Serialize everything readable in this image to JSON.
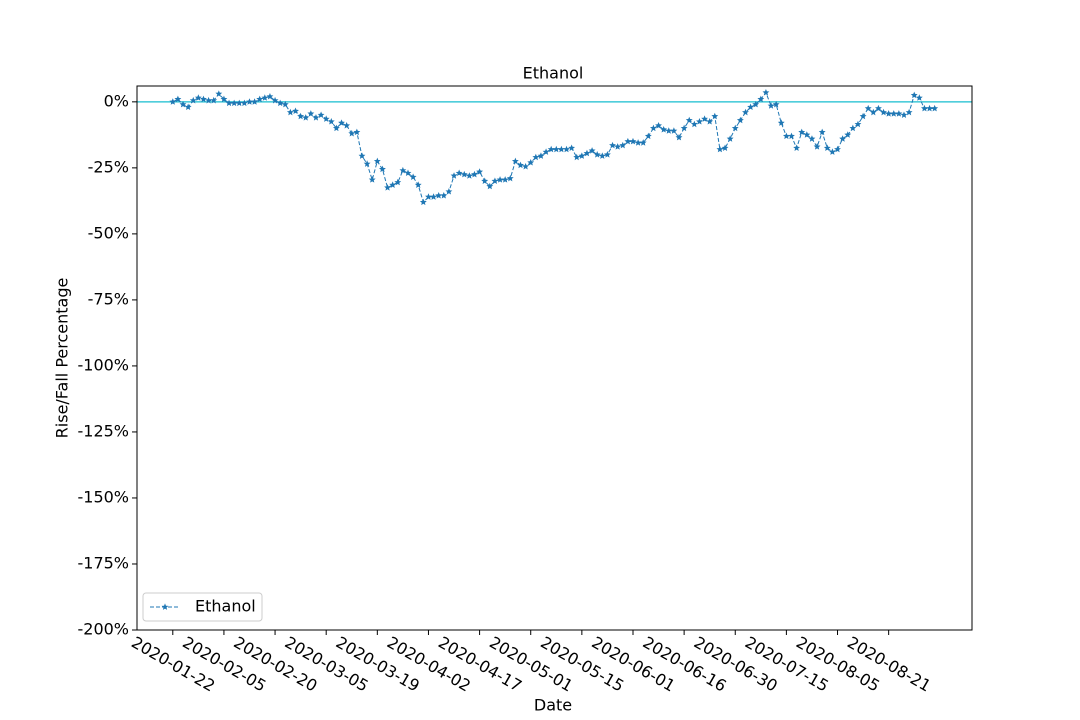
{
  "chart_data": {
    "type": "line",
    "title": "Ethanol",
    "x_label": "Date",
    "y_label": "Rise/Fall Percentage",
    "categories": [
      "2020-01-22",
      null,
      null,
      null,
      null,
      null,
      null,
      null,
      null,
      null,
      "2020-02-05",
      null,
      null,
      null,
      null,
      null,
      null,
      null,
      null,
      null,
      "2020-02-20",
      null,
      null,
      null,
      null,
      null,
      null,
      null,
      null,
      null,
      "2020-03-05",
      null,
      null,
      null,
      null,
      null,
      null,
      null,
      null,
      null,
      "2020-03-19",
      null,
      null,
      null,
      null,
      null,
      null,
      null,
      null,
      null,
      "2020-04-02",
      null,
      null,
      null,
      null,
      null,
      null,
      null,
      null,
      null,
      "2020-04-17",
      null,
      null,
      null,
      null,
      null,
      null,
      null,
      null,
      null,
      "2020-05-01",
      null,
      null,
      null,
      null,
      null,
      null,
      null,
      null,
      null,
      "2020-05-15",
      null,
      null,
      null,
      null,
      null,
      null,
      null,
      null,
      null,
      "2020-06-01",
      null,
      null,
      null,
      null,
      null,
      null,
      null,
      null,
      null,
      "2020-06-16",
      null,
      null,
      null,
      null,
      null,
      null,
      null,
      null,
      null,
      "2020-06-30",
      null,
      null,
      null,
      null,
      null,
      null,
      null,
      null,
      null,
      "2020-07-15",
      null,
      null,
      null,
      null,
      null,
      null,
      null,
      null,
      null,
      "2020-08-05",
      null,
      null,
      null,
      null,
      null,
      null,
      null,
      null,
      null,
      "2020-08-21",
      null,
      null,
      null,
      null,
      null,
      null,
      null,
      null,
      null
    ],
    "series": [
      {
        "name": "Ethanol",
        "color": "#1f77b4",
        "line_style": "dashed",
        "marker": "star",
        "values": [
          0,
          1,
          -1,
          -2,
          0.5,
          1.5,
          1,
          0.5,
          0.5,
          3,
          1,
          -0.5,
          -0.5,
          -0.5,
          -0.5,
          0,
          0,
          1,
          1.5,
          2,
          0.5,
          -0.5,
          -1,
          -4,
          -3.5,
          -5.5,
          -6,
          -4.5,
          -6,
          -5,
          -6.5,
          -7.5,
          -10,
          -8,
          -9,
          -12,
          -11.5,
          -20.5,
          -23.5,
          -29.5,
          -22.5,
          -25.5,
          -32.5,
          -31.5,
          -30.5,
          -26,
          -27,
          -28.5,
          -31.5,
          -38,
          -36,
          -36,
          -35.5,
          -35.5,
          -34,
          -28,
          -27,
          -27.5,
          -28,
          -27.5,
          -26.5,
          -30,
          -32,
          -30,
          -29.5,
          -29.5,
          -29,
          -22.5,
          -24,
          -24.5,
          -23,
          -21,
          -20.5,
          -19,
          -18,
          -18,
          -18,
          -18,
          -17.5,
          -21,
          -20.5,
          -19.5,
          -18.5,
          -20,
          -20.5,
          -20,
          -16.5,
          -17,
          -16.5,
          -15,
          -15,
          -15.5,
          -15.5,
          -13,
          -10,
          -9,
          -10.5,
          -11,
          -11,
          -13.5,
          -10,
          -7,
          -8.5,
          -7.5,
          -6.5,
          -7.5,
          -5.5,
          -18,
          -17.5,
          -14,
          -10,
          -7,
          -4,
          -2,
          -1,
          1,
          3.5,
          -1.5,
          -1,
          -8,
          -13,
          -13,
          -17.5,
          -11.5,
          -12.5,
          -14,
          -17,
          -11.5,
          -17.5,
          -19,
          -18,
          -14,
          -12.5,
          -10,
          -8.5,
          -5.5,
          -2.5,
          -4,
          -2.5,
          -4,
          -4.5,
          -4.5,
          -4.5,
          -5,
          -4,
          2.5,
          1.5,
          -2.5,
          -2.5,
          -2.5
        ]
      }
    ],
    "ylim": [
      -200,
      6
    ],
    "yticks": [
      {
        "value": -200,
        "label": "-200%"
      },
      {
        "value": -175,
        "label": "-175%"
      },
      {
        "value": -150,
        "label": "-150%"
      },
      {
        "value": -125,
        "label": "-125%"
      },
      {
        "value": -100,
        "label": "-100%"
      },
      {
        "value": -75,
        "label": "-75%"
      },
      {
        "value": -50,
        "label": "-50%"
      },
      {
        "value": -25,
        "label": "-25%"
      },
      {
        "value": 0,
        "label": "0%"
      }
    ],
    "reference_line": {
      "y": 0,
      "color": "#17becf"
    },
    "grid": false,
    "legend": "lower left"
  }
}
